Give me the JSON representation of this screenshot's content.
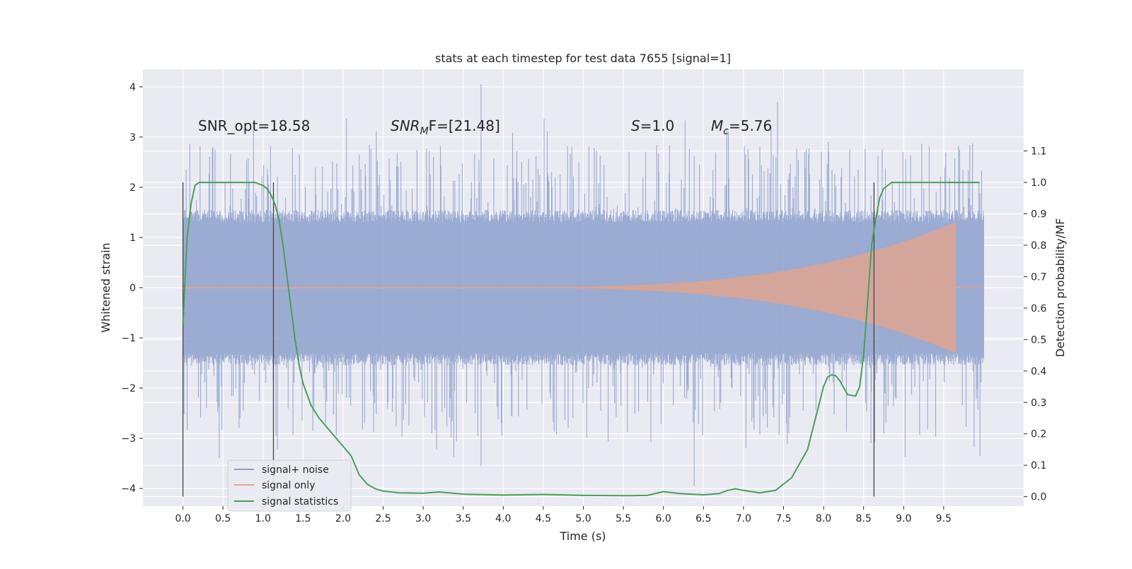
{
  "chart_data": {
    "type": "line",
    "title": "stats at each timestep for test data 7655 [signal=1]",
    "xlabel": "Time (s)",
    "ylabel": "Whitened strain",
    "y2label": "Detection probability/MF",
    "xlim": [
      -0.5,
      10.5
    ],
    "ylim": [
      -4.35,
      4.35
    ],
    "y2lim": [
      -0.03,
      1.36
    ],
    "x_ticks": [
      0.0,
      0.5,
      1.0,
      1.5,
      2.0,
      2.5,
      3.0,
      3.5,
      4.0,
      4.5,
      5.0,
      5.5,
      6.0,
      6.5,
      7.0,
      7.5,
      8.0,
      8.5,
      9.0,
      9.5
    ],
    "x_tick_labels": [
      "0.0",
      "0.5",
      "1.0",
      "1.5",
      "2.0",
      "2.5",
      "3.0",
      "3.5",
      "4.0",
      "4.5",
      "5.0",
      "5.5",
      "6.0",
      "6.5",
      "7.0",
      "7.5",
      "8.0",
      "8.5",
      "9.0",
      "9.5"
    ],
    "y_ticks": [
      4,
      3,
      2,
      1,
      0,
      -1,
      -2,
      -3,
      -4
    ],
    "y_tick_labels": [
      "4",
      "3",
      "2",
      "1",
      "0",
      "−1",
      "−2",
      "−3",
      "−4"
    ],
    "y2_ticks": [
      1.1,
      1.0,
      0.9,
      0.8,
      0.7,
      0.6,
      0.5,
      0.4,
      0.3,
      0.2,
      0.1,
      0.0
    ],
    "y2_tick_labels": [
      "1.1",
      "1.0",
      "0.9",
      "0.8",
      "0.7",
      "0.6",
      "0.5",
      "0.4",
      "0.3",
      "0.2",
      "0.1",
      "0.0"
    ],
    "grid": true,
    "legend_position": "lower-left",
    "annotations": {
      "snr_opt": "SNR_opt=18.58",
      "snr_mf_base": "SNR",
      "snr_mf_sub": "M",
      "snr_mf_rest": "F=[21.48]",
      "s_base": "S",
      "s_rest": "=1.0",
      "mc_base": "M",
      "mc_sub": "c",
      "mc_rest": "=5.76"
    },
    "vertical_markers": [
      0.0,
      1.13,
      8.63
    ],
    "series": [
      {
        "name": "signal+ noise",
        "color": "#8da0cb",
        "envelope": {
          "x_start": 0.0,
          "x_end": 10.0,
          "typical_abs": 1.3,
          "peak_max": 4.05,
          "peak_min": -3.95
        }
      },
      {
        "name": "signal only",
        "color": "#e8a38a",
        "envelope": {
          "x_start": 3.5,
          "x_end": 9.65,
          "amplitude_start": 0.0,
          "amplitude_end": 1.3,
          "cutoff": 9.65
        }
      },
      {
        "name": "signal statistics",
        "color": "#4a9e5c",
        "axis": "y2",
        "x": [
          0.0,
          0.05,
          0.1,
          0.15,
          0.2,
          0.3,
          0.5,
          0.7,
          0.9,
          1.0,
          1.05,
          1.1,
          1.15,
          1.2,
          1.25,
          1.3,
          1.35,
          1.4,
          1.45,
          1.5,
          1.6,
          1.7,
          1.8,
          1.9,
          2.0,
          2.1,
          2.2,
          2.3,
          2.4,
          2.5,
          2.7,
          3.0,
          3.2,
          3.5,
          4.0,
          4.5,
          5.0,
          5.5,
          5.8,
          6.0,
          6.2,
          6.5,
          6.7,
          6.8,
          6.9,
          7.0,
          7.2,
          7.4,
          7.6,
          7.8,
          7.9,
          8.0,
          8.05,
          8.1,
          8.15,
          8.2,
          8.3,
          8.4,
          8.45,
          8.5,
          8.55,
          8.6,
          8.65,
          8.7,
          8.75,
          8.8,
          8.85,
          8.9,
          9.0,
          9.5,
          9.95
        ],
        "y": [
          0.55,
          0.82,
          0.93,
          0.99,
          1.0,
          1.0,
          1.0,
          1.0,
          1.0,
          0.99,
          0.98,
          0.96,
          0.93,
          0.88,
          0.8,
          0.7,
          0.6,
          0.5,
          0.42,
          0.36,
          0.29,
          0.25,
          0.22,
          0.19,
          0.16,
          0.13,
          0.07,
          0.04,
          0.025,
          0.018,
          0.012,
          0.011,
          0.015,
          0.008,
          0.005,
          0.007,
          0.004,
          0.003,
          0.004,
          0.016,
          0.01,
          0.006,
          0.01,
          0.02,
          0.025,
          0.02,
          0.012,
          0.02,
          0.06,
          0.15,
          0.25,
          0.35,
          0.38,
          0.388,
          0.385,
          0.37,
          0.325,
          0.32,
          0.35,
          0.45,
          0.62,
          0.8,
          0.88,
          0.95,
          0.98,
          0.99,
          1.0,
          1.0,
          1.0,
          1.0,
          1.0
        ]
      }
    ]
  }
}
